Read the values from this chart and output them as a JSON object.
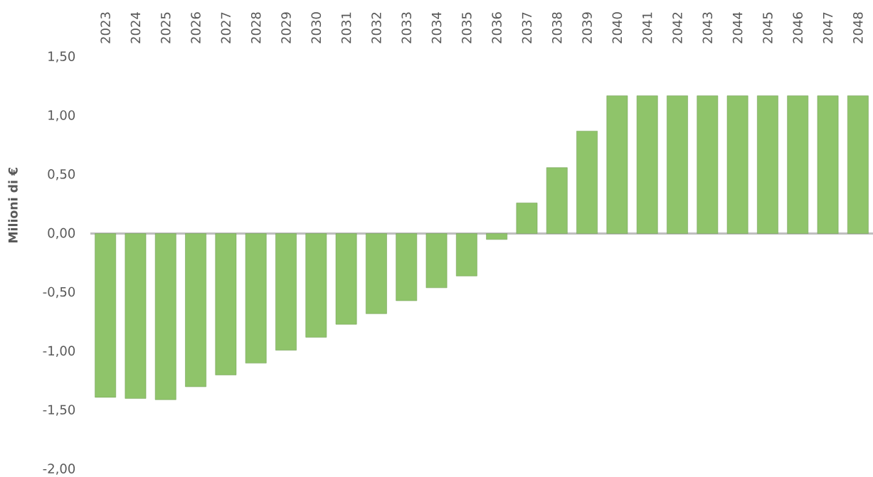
{
  "chart_data": {
    "type": "bar",
    "ylabel": "Milioni di €",
    "categories": [
      "2023",
      "2024",
      "2025",
      "2026",
      "2027",
      "2028",
      "2029",
      "2030",
      "2031",
      "2032",
      "2033",
      "2034",
      "2035",
      "2036",
      "2037",
      "2038",
      "2039",
      "2040",
      "2041",
      "2042",
      "2043",
      "2044",
      "2045",
      "2046",
      "2047",
      "2048"
    ],
    "values": [
      -1.39,
      -1.4,
      -1.41,
      -1.3,
      -1.2,
      -1.1,
      -0.99,
      -0.88,
      -0.77,
      -0.68,
      -0.57,
      -0.46,
      -0.36,
      -0.05,
      0.26,
      0.56,
      0.87,
      1.17,
      1.17,
      1.17,
      1.17,
      1.17,
      1.17,
      1.17,
      1.17,
      1.17
    ],
    "color": "#8fc46a",
    "ylim": [
      -2,
      1.5
    ],
    "yticks": [
      {
        "value": -2,
        "label": "-2,00"
      },
      {
        "value": -1.5,
        "label": "-1,50"
      },
      {
        "value": -1,
        "label": "-1,00"
      },
      {
        "value": -0.5,
        "label": "-0,50"
      },
      {
        "value": 0,
        "label": "0,00"
      },
      {
        "value": 0.5,
        "label": "0,50"
      },
      {
        "value": 1,
        "label": "1,00"
      },
      {
        "value": 1.5,
        "label": "1,50"
      }
    ]
  }
}
